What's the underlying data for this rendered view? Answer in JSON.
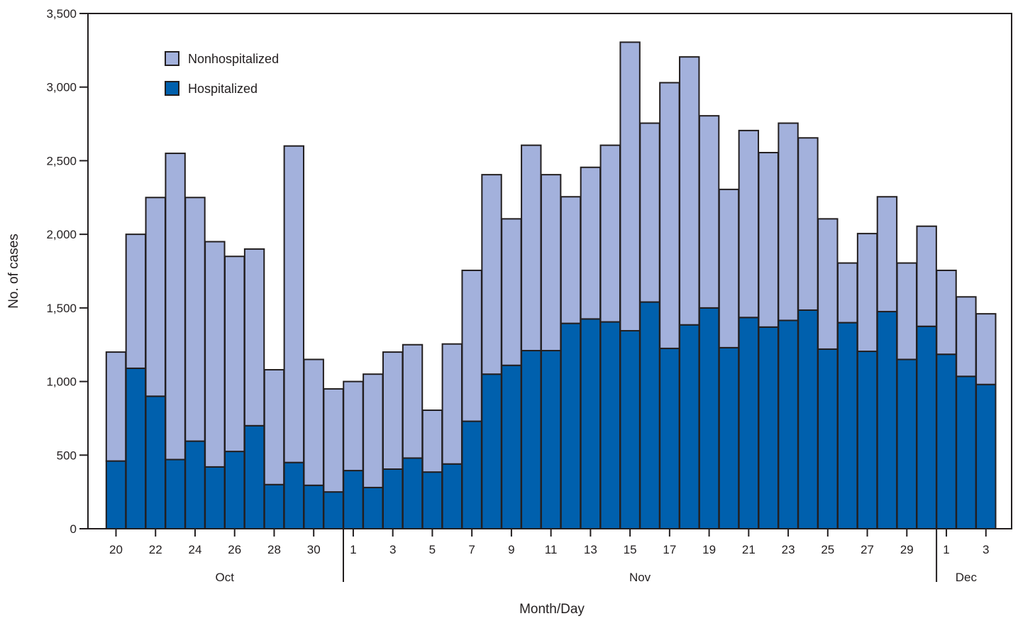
{
  "chart_data": {
    "type": "bar",
    "stacked": true,
    "title": "",
    "xlabel": "Month/Day",
    "ylabel": "No. of cases",
    "ylim": [
      0,
      3500
    ],
    "yticks": [
      0,
      500,
      1000,
      1500,
      2000,
      2500,
      3000,
      3500
    ],
    "ytick_labels": [
      "0",
      "500",
      "1,000",
      "1,500",
      "2,000",
      "2,500",
      "3,000",
      "3,500"
    ],
    "grid": false,
    "legend_position": "top-left",
    "categories": [
      "Oct 20",
      "Oct 21",
      "Oct 22",
      "Oct 23",
      "Oct 24",
      "Oct 25",
      "Oct 26",
      "Oct 27",
      "Oct 28",
      "Oct 29",
      "Oct 30",
      "Oct 31",
      "Nov 1",
      "Nov 2",
      "Nov 3",
      "Nov 4",
      "Nov 5",
      "Nov 6",
      "Nov 7",
      "Nov 8",
      "Nov 9",
      "Nov 10",
      "Nov 11",
      "Nov 12",
      "Nov 13",
      "Nov 14",
      "Nov 15",
      "Nov 16",
      "Nov 17",
      "Nov 18",
      "Nov 19",
      "Nov 20",
      "Nov 21",
      "Nov 22",
      "Nov 23",
      "Nov 24",
      "Nov 25",
      "Nov 26",
      "Nov 27",
      "Nov 28",
      "Nov 29",
      "Nov 30",
      "Dec 1",
      "Dec 2",
      "Dec 3"
    ],
    "series": [
      {
        "name": "Hospitalized",
        "color": "#0060ad",
        "values": [
          460,
          1090,
          900,
          470,
          595,
          420,
          525,
          700,
          300,
          450,
          295,
          250,
          395,
          280,
          405,
          480,
          385,
          440,
          730,
          1050,
          1110,
          1210,
          1210,
          1395,
          1425,
          1405,
          1345,
          1540,
          1225,
          1385,
          1500,
          1230,
          1435,
          1370,
          1415,
          1485,
          1220,
          1400,
          1205,
          1475,
          1150,
          1375,
          1185,
          1035,
          980
        ]
      },
      {
        "name": "Nonhospitalized",
        "color": "#a3b1dc",
        "values": [
          740,
          910,
          1350,
          2080,
          1655,
          1530,
          1325,
          1200,
          780,
          2150,
          855,
          700,
          605,
          770,
          795,
          770,
          420,
          815,
          1025,
          1355,
          995,
          1395,
          1195,
          860,
          1030,
          1200,
          1960,
          1215,
          1805,
          1820,
          1305,
          1075,
          1270,
          1185,
          1340,
          1170,
          885,
          405,
          800,
          780,
          655,
          680,
          570,
          540,
          480
        ]
      }
    ],
    "x_tick_labels": [
      {
        "label": "20",
        "category": "Oct 20"
      },
      {
        "label": "22",
        "category": "Oct 22"
      },
      {
        "label": "24",
        "category": "Oct 24"
      },
      {
        "label": "26",
        "category": "Oct 26"
      },
      {
        "label": "28",
        "category": "Oct 28"
      },
      {
        "label": "30",
        "category": "Oct 30"
      },
      {
        "label": "1",
        "category": "Nov 1"
      },
      {
        "label": "3",
        "category": "Nov 3"
      },
      {
        "label": "5",
        "category": "Nov 5"
      },
      {
        "label": "7",
        "category": "Nov 7"
      },
      {
        "label": "9",
        "category": "Nov 9"
      },
      {
        "label": "11",
        "category": "Nov 11"
      },
      {
        "label": "13",
        "category": "Nov 13"
      },
      {
        "label": "15",
        "category": "Nov 15"
      },
      {
        "label": "17",
        "category": "Nov 17"
      },
      {
        "label": "19",
        "category": "Nov 19"
      },
      {
        "label": "21",
        "category": "Nov 21"
      },
      {
        "label": "23",
        "category": "Nov 23"
      },
      {
        "label": "25",
        "category": "Nov 25"
      },
      {
        "label": "27",
        "category": "Nov 27"
      },
      {
        "label": "29",
        "category": "Nov 29"
      },
      {
        "label": "1",
        "category": "Dec 1"
      },
      {
        "label": "3",
        "category": "Dec 3"
      }
    ],
    "months": [
      {
        "label": "Oct",
        "first": "Oct 20",
        "last": "Oct 31"
      },
      {
        "label": "Nov",
        "first": "Nov 1",
        "last": "Nov 30"
      },
      {
        "label": "Dec",
        "first": "Dec 1",
        "last": "Dec 3"
      }
    ],
    "legend": [
      {
        "label": "Nonhospitalized",
        "color": "#a3b1dc"
      },
      {
        "label": "Hospitalized",
        "color": "#0060ad"
      }
    ],
    "border_color": "#231f20"
  }
}
